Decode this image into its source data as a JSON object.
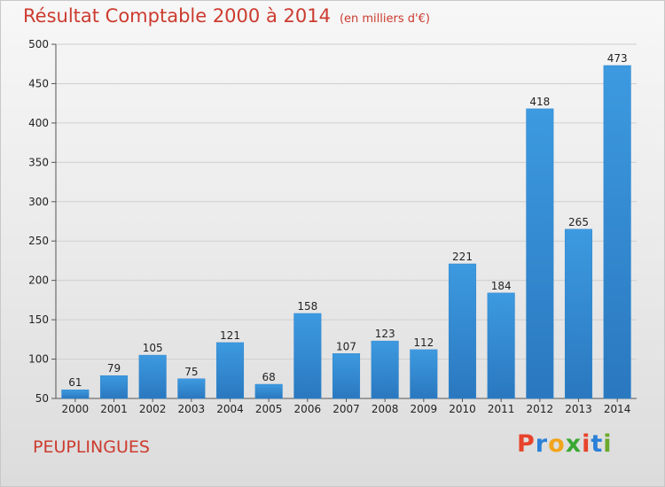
{
  "title": "Résultat Comptable 2000 à 2014",
  "unit_label": "(en milliers d'€)",
  "town": "PEUPLINGUES",
  "logo": {
    "letters": [
      "P",
      "r",
      "o",
      "x",
      "i",
      "t",
      "i"
    ],
    "colors": [
      "#e8432b",
      "#2a80d8",
      "#f1a51b",
      "#3aa832",
      "#e8432b",
      "#2a80d8",
      "#6aa92c"
    ]
  },
  "colors": {
    "bar": "#3d9ae0",
    "bar_dark": "#2a78bf",
    "grid": "#cfcfcf",
    "title": "#cc3b2f"
  },
  "chart_data": {
    "type": "bar",
    "title": "Résultat Comptable 2000 à 2014",
    "xlabel": "",
    "ylabel": "",
    "categories": [
      "2000",
      "2001",
      "2002",
      "2003",
      "2004",
      "2005",
      "2006",
      "2007",
      "2008",
      "2009",
      "2010",
      "2011",
      "2012",
      "2013",
      "2014"
    ],
    "values": [
      61,
      79,
      105,
      75,
      121,
      68,
      158,
      107,
      123,
      112,
      221,
      184,
      418,
      265,
      473
    ],
    "ylim": [
      50,
      500
    ],
    "yticks": [
      50,
      100,
      150,
      200,
      250,
      300,
      350,
      400,
      450,
      500
    ],
    "grid": true
  }
}
